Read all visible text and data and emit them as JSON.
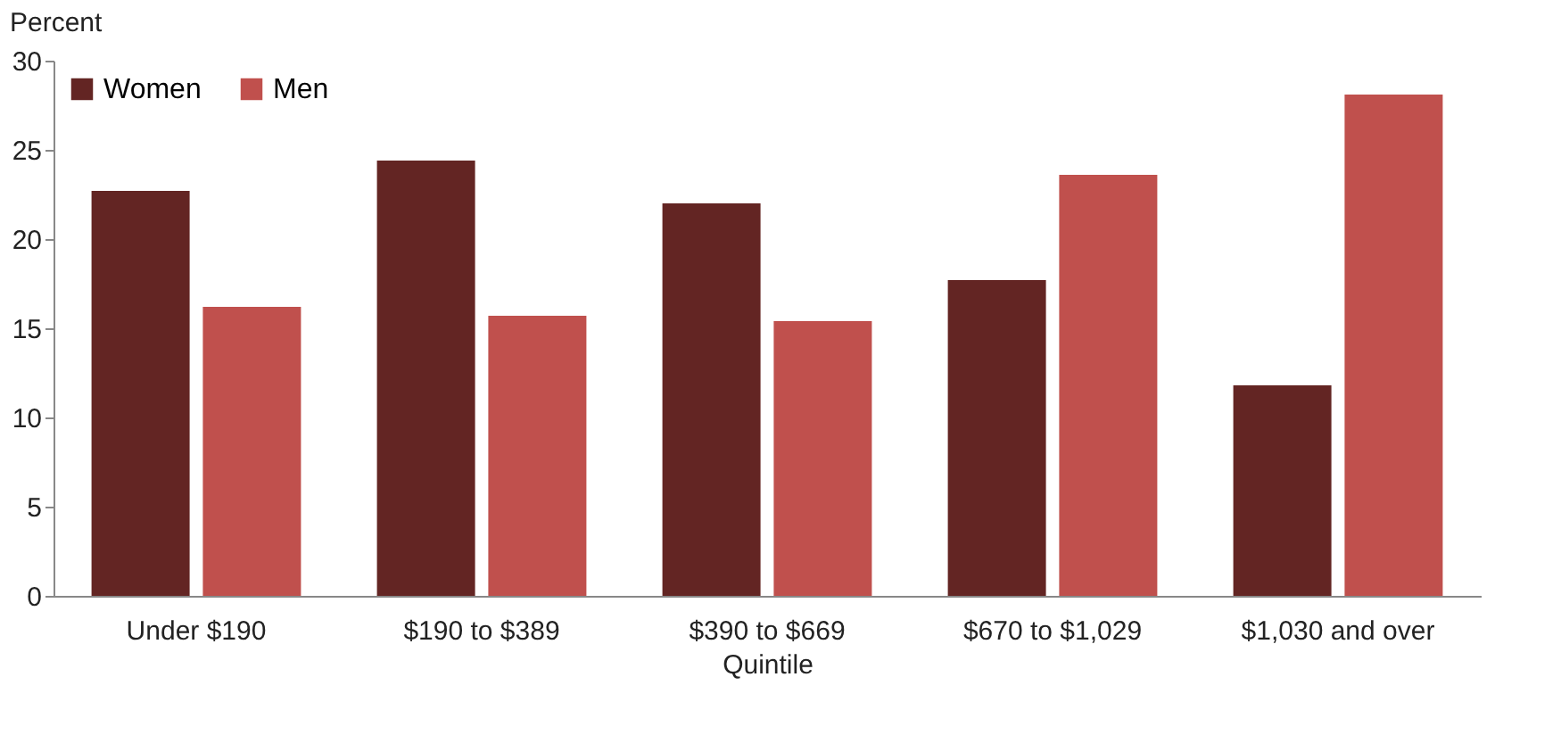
{
  "chart_data": {
    "type": "bar",
    "xlabel": "Quintile",
    "ylabel": "Percent",
    "categories": [
      "Under $190",
      "$190 to $389",
      "$390 to $669",
      "$670 to $1,029",
      "$1,030 and over"
    ],
    "series": [
      {
        "name": "Women",
        "color": "#632523",
        "values": [
          22.7,
          24.4,
          22.0,
          17.7,
          11.8
        ]
      },
      {
        "name": "Men",
        "color": "#c0504d",
        "values": [
          16.2,
          15.7,
          15.4,
          23.6,
          28.1
        ]
      }
    ],
    "ylim": [
      0,
      30
    ],
    "yticks": [
      0,
      5,
      10,
      15,
      20,
      25,
      30
    ],
    "grid": false,
    "legend": "top left"
  }
}
